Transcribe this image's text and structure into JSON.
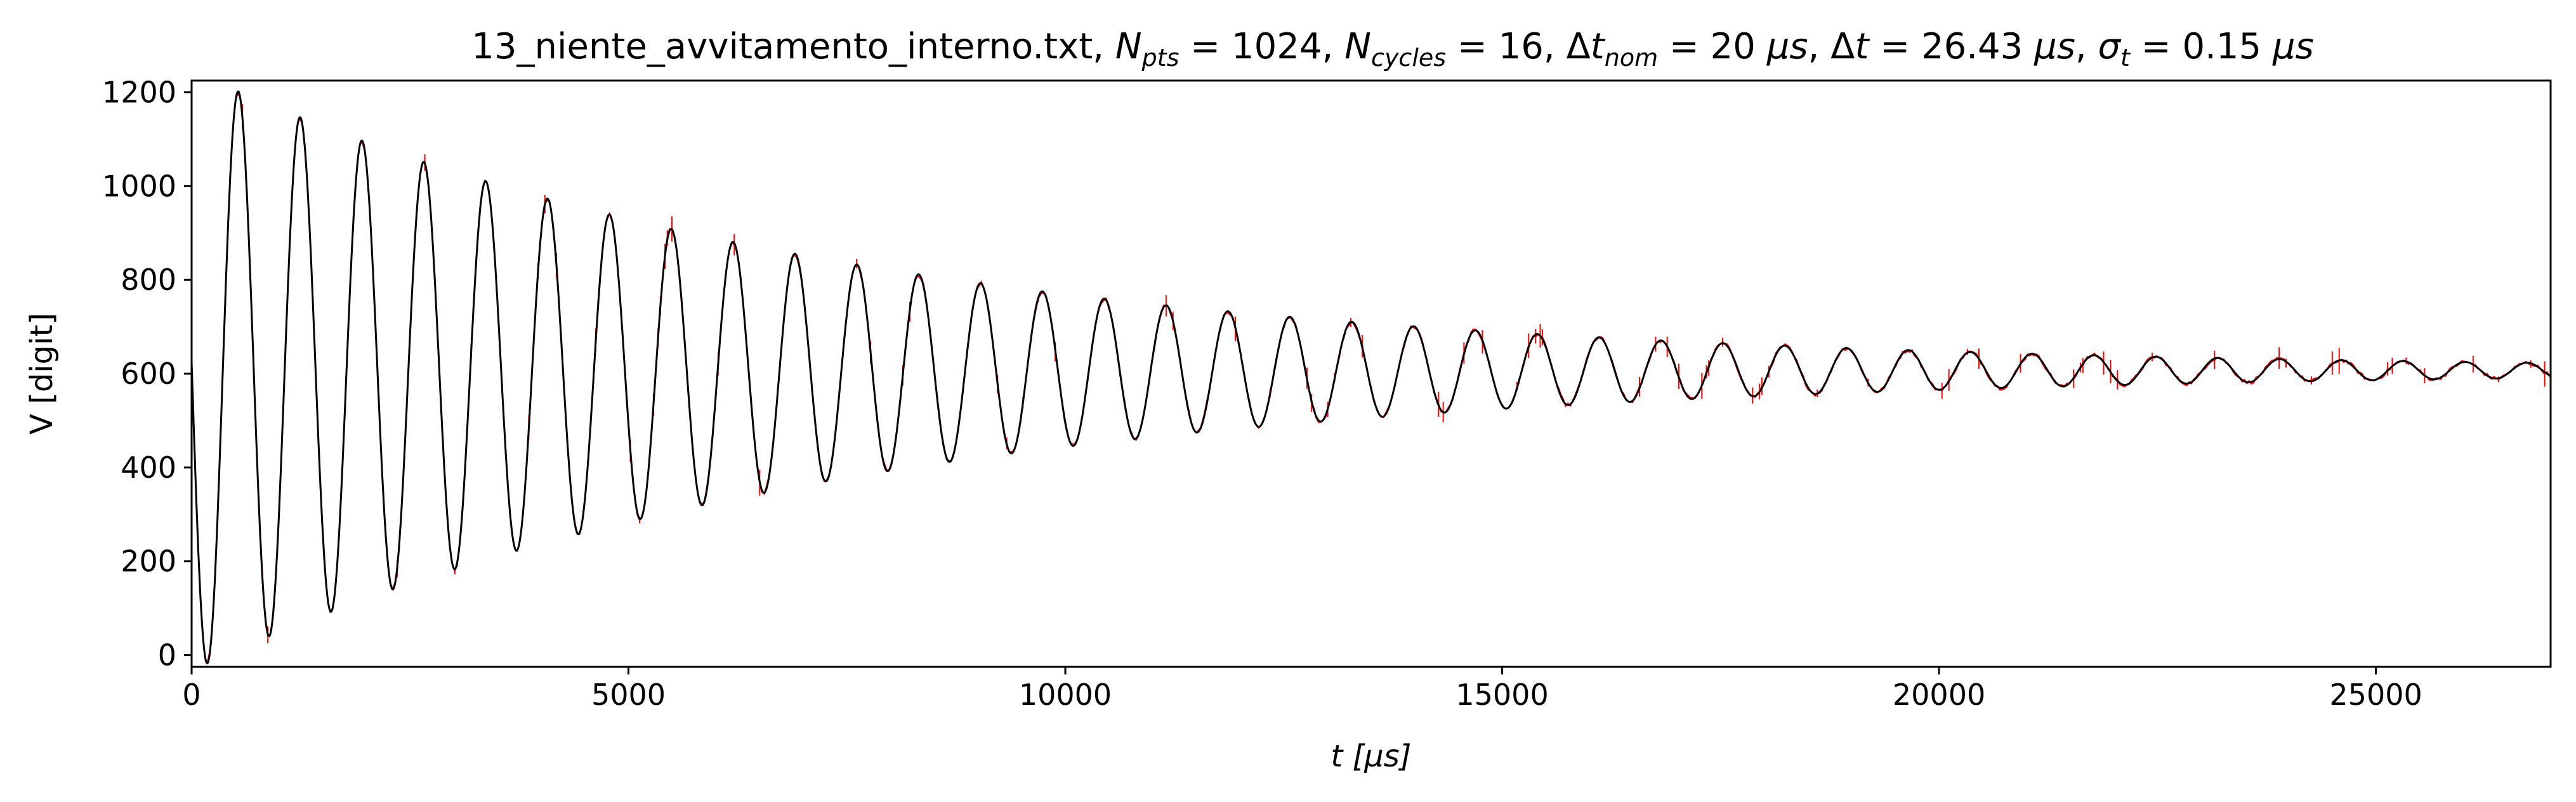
{
  "chart_data": {
    "type": "line",
    "title_parts": {
      "file": "13_niente_avvitamento_interno.txt",
      "npts_value": "1024",
      "ncycles_value": "16",
      "dtnom_value": "20",
      "dt_value": "26.43",
      "sigma_value": "0.15",
      "unit": "μs"
    },
    "xlabel": "t [μs]",
    "ylabel": "V [digit]",
    "xlim": [
      0,
      27000
    ],
    "ylim": [
      -25,
      1225
    ],
    "xticks": [
      0,
      5000,
      10000,
      15000,
      20000,
      25000
    ],
    "yticks": [
      0,
      200,
      400,
      600,
      800,
      1000,
      1200
    ],
    "grid": false,
    "series": [
      {
        "role": "data",
        "color": "#ff0000",
        "style": "points-with-error-bars",
        "n_points": 1024,
        "dt": 26.43,
        "sigma_t": 0.15
      },
      {
        "role": "fit",
        "color": "#000000",
        "style": "line",
        "model": {
          "offset": 607,
          "amplitude": 640,
          "decay_tau": 7300,
          "period": 708,
          "phase_time": 180
        }
      }
    ]
  }
}
